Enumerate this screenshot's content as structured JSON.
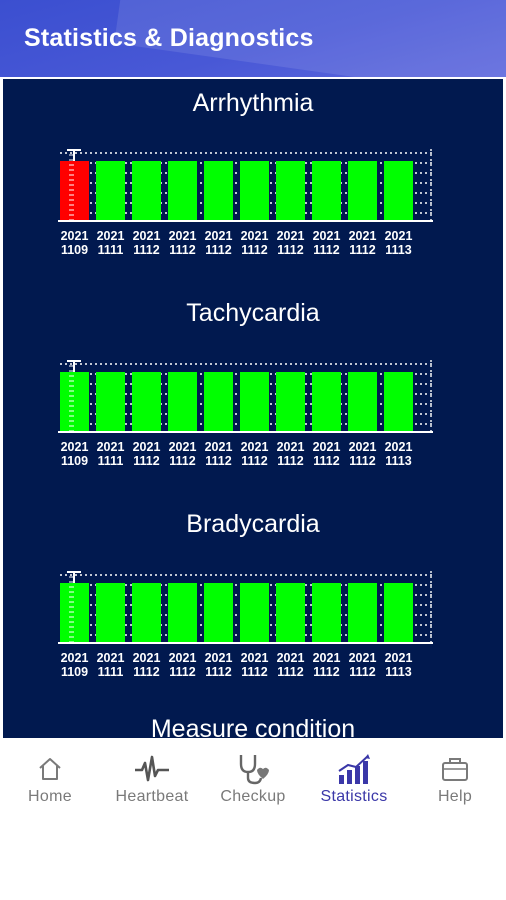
{
  "header": {
    "title": "Statistics & Diagnostics"
  },
  "sections": [
    {
      "title": "Arrhythmia",
      "bars": [
        {
          "top": "2021",
          "bottom": "1109",
          "color": "#ff0000"
        },
        {
          "top": "2021",
          "bottom": "1111",
          "color": "#00ff00"
        },
        {
          "top": "2021",
          "bottom": "1112",
          "color": "#00ff00"
        },
        {
          "top": "2021",
          "bottom": "1112",
          "color": "#00ff00"
        },
        {
          "top": "2021",
          "bottom": "1112",
          "color": "#00ff00"
        },
        {
          "top": "2021",
          "bottom": "1112",
          "color": "#00ff00"
        },
        {
          "top": "2021",
          "bottom": "1112",
          "color": "#00ff00"
        },
        {
          "top": "2021",
          "bottom": "1112",
          "color": "#00ff00"
        },
        {
          "top": "2021",
          "bottom": "1112",
          "color": "#00ff00"
        },
        {
          "top": "2021",
          "bottom": "1113",
          "color": "#00ff00"
        }
      ]
    },
    {
      "title": "Tachycardia",
      "bars": [
        {
          "top": "2021",
          "bottom": "1109",
          "color": "#00ff00"
        },
        {
          "top": "2021",
          "bottom": "1111",
          "color": "#00ff00"
        },
        {
          "top": "2021",
          "bottom": "1112",
          "color": "#00ff00"
        },
        {
          "top": "2021",
          "bottom": "1112",
          "color": "#00ff00"
        },
        {
          "top": "2021",
          "bottom": "1112",
          "color": "#00ff00"
        },
        {
          "top": "2021",
          "bottom": "1112",
          "color": "#00ff00"
        },
        {
          "top": "2021",
          "bottom": "1112",
          "color": "#00ff00"
        },
        {
          "top": "2021",
          "bottom": "1112",
          "color": "#00ff00"
        },
        {
          "top": "2021",
          "bottom": "1112",
          "color": "#00ff00"
        },
        {
          "top": "2021",
          "bottom": "1113",
          "color": "#00ff00"
        }
      ]
    },
    {
      "title": "Bradycardia",
      "bars": [
        {
          "top": "2021",
          "bottom": "1109",
          "color": "#00ff00"
        },
        {
          "top": "2021",
          "bottom": "1111",
          "color": "#00ff00"
        },
        {
          "top": "2021",
          "bottom": "1112",
          "color": "#00ff00"
        },
        {
          "top": "2021",
          "bottom": "1112",
          "color": "#00ff00"
        },
        {
          "top": "2021",
          "bottom": "1112",
          "color": "#00ff00"
        },
        {
          "top": "2021",
          "bottom": "1112",
          "color": "#00ff00"
        },
        {
          "top": "2021",
          "bottom": "1112",
          "color": "#00ff00"
        },
        {
          "top": "2021",
          "bottom": "1112",
          "color": "#00ff00"
        },
        {
          "top": "2021",
          "bottom": "1112",
          "color": "#00ff00"
        },
        {
          "top": "2021",
          "bottom": "1113",
          "color": "#00ff00"
        }
      ]
    }
  ],
  "measure_title": "Measure condition",
  "nav": {
    "items": [
      {
        "label": "Home",
        "icon": "home-icon",
        "active": false
      },
      {
        "label": "Heartbeat",
        "icon": "heartbeat-icon",
        "active": false
      },
      {
        "label": "Checkup",
        "icon": "stethoscope-icon",
        "active": false
      },
      {
        "label": "Statistics",
        "icon": "statistics-icon",
        "active": true
      },
      {
        "label": "Help",
        "icon": "briefcase-icon",
        "active": false
      }
    ]
  },
  "colors": {
    "header": "#4858d6",
    "content_bg": "#01194f",
    "normal": "#00ff00",
    "alert": "#ff0000",
    "nav_active": "#3a37a8",
    "nav_inactive": "#7a7a7a"
  }
}
